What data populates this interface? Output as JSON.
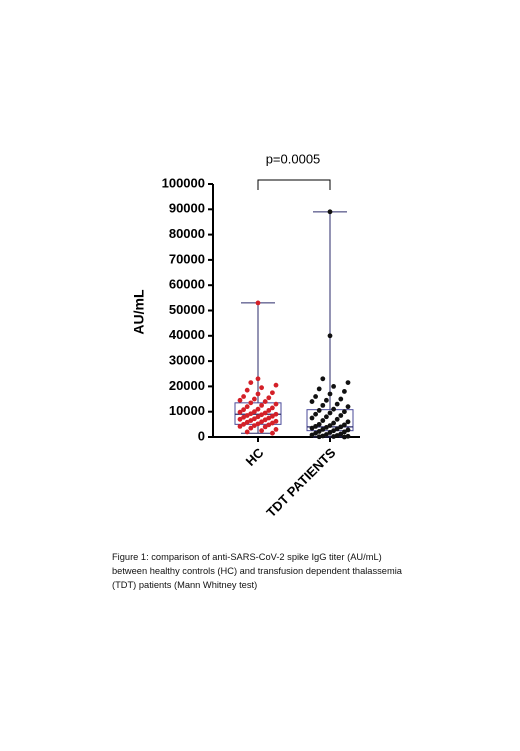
{
  "chart_data": {
    "type": "box",
    "annotation": "p=0.0005",
    "ylabel": "AU/mL",
    "categories": [
      "HC",
      "TDT PATIENTS"
    ],
    "ylim": [
      0,
      100000
    ],
    "yticks": [
      0,
      10000,
      20000,
      30000,
      40000,
      50000,
      60000,
      70000,
      80000,
      90000,
      100000
    ],
    "boxes": [
      {
        "color": "#d42028",
        "min": 1500,
        "q1": 5000,
        "median": 9000,
        "q3": 13500,
        "max": 53000,
        "points": [
          53000,
          23000,
          21500,
          20500,
          19500,
          18500,
          17500,
          17000,
          16000,
          15500,
          15000,
          14500,
          14000,
          13500,
          13000,
          12500,
          12000,
          11500,
          11000,
          10800,
          10500,
          10000,
          9800,
          9500,
          9200,
          9000,
          8800,
          8500,
          8200,
          8000,
          7800,
          7500,
          7200,
          7000,
          6800,
          6500,
          6200,
          6000,
          5800,
          5500,
          5200,
          5000,
          4800,
          4500,
          4200,
          4000,
          3500,
          3000,
          2500,
          2000,
          1500
        ]
      },
      {
        "color": "#111111",
        "min": 0,
        "q1": 2500,
        "median": 4000,
        "q3": 10800,
        "max": 89000,
        "points": [
          89000,
          40000,
          23000,
          21500,
          20000,
          19000,
          18000,
          17000,
          16000,
          15000,
          14500,
          14000,
          13000,
          12500,
          12000,
          11000,
          10500,
          10000,
          9500,
          9000,
          8500,
          8000,
          7500,
          7000,
          6500,
          6000,
          5500,
          5000,
          4800,
          4500,
          4200,
          4000,
          3800,
          3500,
          3200,
          3000,
          2800,
          2500,
          2200,
          2000,
          1800,
          1500,
          1200,
          1000,
          800,
          600,
          400,
          300,
          200,
          100,
          0
        ]
      }
    ]
  },
  "caption": "Figure 1: comparison of anti-SARS-CoV-2 spike IgG titer (AU/mL) between healthy controls (HC) and transfusion dependent thalassemia (TDT) patients (Mann Whitney test)"
}
